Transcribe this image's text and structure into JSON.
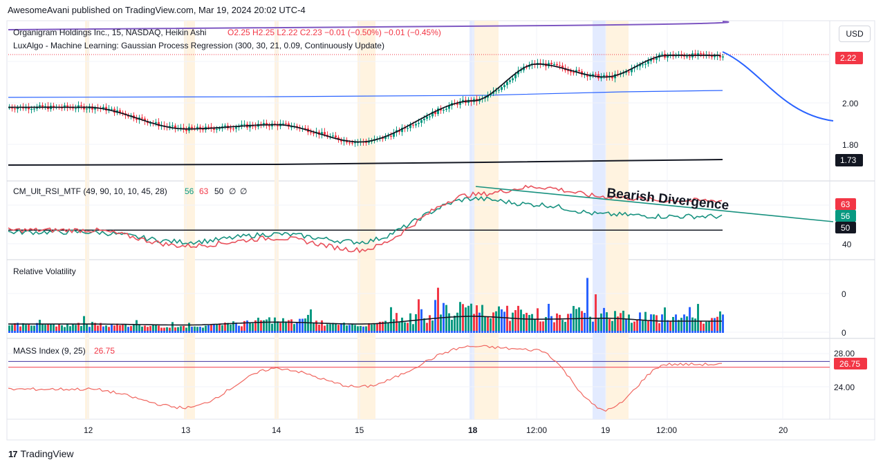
{
  "header": {
    "publish_line": "AwesomeAvani published on TradingView.com, Mar 19, 2024 20:02 UTC-4"
  },
  "currency_button": "USD",
  "footer": {
    "brand": "TradingView",
    "logo_text": "17"
  },
  "panes": {
    "price": {
      "legend_1": "Organigram Holdings Inc., 15, NASDAQ, Heikin Ashi",
      "legend_1_ohlc": "O2.25  H2.25  L2.22  C2.23  −0.01 (−0.50%)  −0.01 (−0.45%)",
      "legend_2": "LuxAlgo - Machine Learning: Gaussian Process Regression (300, 30, 21, 0.09, Continuously Update)",
      "y_ticks": [
        "2.00",
        "1.80"
      ],
      "last_price_badge": "2.22",
      "lower_line_badge": "1.73"
    },
    "rsi": {
      "legend": "CM_Ult_RSI_MTF (49, 90, 10, 10, 45, 28)",
      "legend_v1": "56",
      "legend_v2": "63",
      "legend_v3": "50",
      "legend_v4": "∅",
      "legend_v5": "∅",
      "annotation": "Bearish Divergence",
      "badges": [
        "63",
        "56",
        "50"
      ],
      "y_tick": "40"
    },
    "volatility": {
      "legend": "Relative Volatility",
      "y_ticks": [
        "0",
        "0"
      ]
    },
    "mass": {
      "legend": "MASS Index (9, 25)",
      "legend_value": "26.75",
      "y_ticks": [
        "28.00",
        "24.00"
      ],
      "badge": "26.75"
    }
  },
  "x_axis": {
    "ticks": [
      "12",
      "13",
      "14",
      "15",
      "18",
      "12:00",
      "19",
      "12:00",
      "20"
    ]
  },
  "colors": {
    "up": "#089981",
    "down": "#f23645",
    "black": "#131722",
    "blue": "#2962ff",
    "purple": "#7e57c2",
    "rsi_green": "#17917f",
    "rsi_red": "#e8505b",
    "mass_red": "#f0665f",
    "session": "#fff3e0",
    "session_blue": "#e3ebff"
  },
  "chart_data": [
    {
      "type": "line",
      "title": "Organigram Holdings Inc., 15, NASDAQ, Heikin Ashi",
      "x": [
        "12",
        "13",
        "14",
        "15",
        "18",
        "12:00",
        "19",
        "12:00"
      ],
      "series": [
        {
          "values": [
            2.02,
            1.92,
            1.94,
            1.86,
            2.05,
            2.22,
            2.16,
            2.26
          ]
        }
      ],
      "ylim": [
        1.68,
        2.42
      ]
    },
    {
      "type": "line",
      "title": "CM_Ult_RSI_MTF (49, 90, 10, 10, 45, 28)",
      "x": [
        "12",
        "13",
        "14",
        "15",
        "18",
        "12:00",
        "19",
        "12:00"
      ],
      "series": [
        {
          "values": [
            49,
            44,
            48,
            44,
            66,
            63,
            58,
            57
          ]
        },
        {
          "values": [
            50,
            42,
            46,
            40,
            68,
            72,
            67,
            65
          ]
        }
      ],
      "ylim": [
        35,
        75
      ]
    },
    {
      "type": "bar",
      "title": "Relative Volatility",
      "x": [
        "12",
        "13",
        "14",
        "15",
        "18",
        "12:00",
        "19",
        "12:00"
      ],
      "values": [
        0.2,
        0.1,
        0.4,
        0.2,
        1.0,
        0.7,
        0.8,
        0.5
      ]
    },
    {
      "type": "line",
      "title": "MASS Index (9, 25)",
      "x": [
        "12",
        "13",
        "14",
        "15",
        "18",
        "12:00",
        "19",
        "12:00"
      ],
      "series": [
        {
          "values": [
            24.6,
            23.0,
            26.4,
            24.8,
            28.3,
            28.0,
            22.8,
            26.75
          ]
        }
      ],
      "ylim": [
        22,
        29
      ]
    }
  ]
}
